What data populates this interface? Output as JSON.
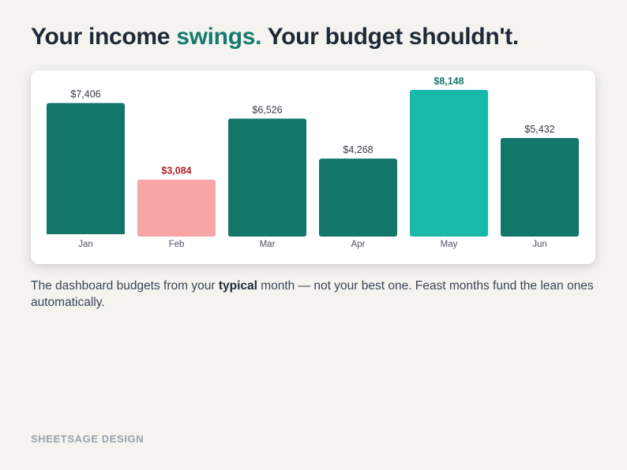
{
  "headline": {
    "part1": "Your income ",
    "accent": "swings.",
    "part2": " Your budget shouldn't.",
    "accent_color": "#147a6e"
  },
  "chart_data": {
    "type": "bar",
    "categories": [
      "Jan",
      "Feb",
      "Mar",
      "Apr",
      "May",
      "Jun"
    ],
    "values": [
      7406,
      3084,
      6526,
      4268,
      8148,
      5432
    ],
    "value_labels": [
      "$7,406",
      "$3,084",
      "$6,526",
      "$4,268",
      "$8,148",
      "$5,432"
    ],
    "bar_colors": [
      "#13766b",
      "#f8a5a5",
      "#13766b",
      "#13766b",
      "#17b9a8",
      "#13766b"
    ],
    "label_colors": [
      "#333a44",
      "#b0202a",
      "#333a44",
      "#333a44",
      "#147a6e",
      "#333a44"
    ],
    "label_bold": [
      false,
      true,
      false,
      false,
      true,
      false
    ],
    "highlight_low": "Feb",
    "highlight_high": "May",
    "grid": false,
    "ylim": [
      0,
      8148
    ],
    "title": "",
    "xlabel": "",
    "ylabel": ""
  },
  "caption": {
    "before": "The dashboard budgets from your ",
    "bold": "typical",
    "after": " month — not your best one. Feast months fund the lean ones automatically."
  },
  "brand": "SHEETSAGE DESIGN"
}
